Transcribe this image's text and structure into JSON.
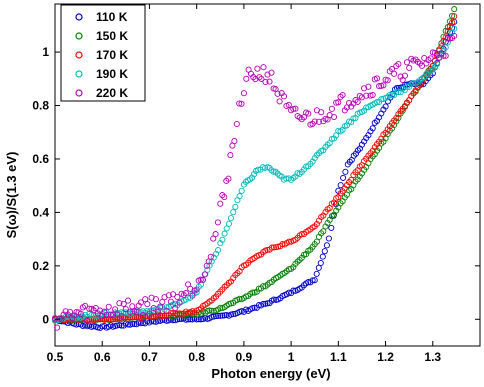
{
  "chart_data": {
    "type": "scatter",
    "xlabel": "Photon energy (eV)",
    "ylabel": "S(ω)/S(1.3 eV)",
    "xlim": [
      0.5,
      1.4
    ],
    "ylim": [
      -0.1,
      1.18
    ],
    "x_ticks": [
      "0.5",
      "0.6",
      "0.7",
      "0.8",
      "0.9",
      "1",
      "1.1",
      "1.2",
      "1.3"
    ],
    "y_ticks": [
      "0",
      "0.2",
      "0.4",
      "0.6",
      "0.8",
      "1"
    ],
    "legend_position": "top-left",
    "marker": "open-circle",
    "series": [
      {
        "name": "110 K",
        "color": "#0000cc",
        "x": [
          0.5,
          0.55,
          0.6,
          0.65,
          0.7,
          0.75,
          0.8,
          0.85,
          0.9,
          0.95,
          1.0,
          1.05,
          1.08,
          1.1,
          1.12,
          1.15,
          1.2,
          1.22,
          1.25,
          1.28,
          1.3,
          1.35
        ],
        "y": [
          0.0,
          -0.02,
          -0.03,
          -0.02,
          -0.01,
          0.0,
          0.0,
          0.01,
          0.03,
          0.06,
          0.1,
          0.15,
          0.3,
          0.48,
          0.58,
          0.65,
          0.8,
          0.86,
          0.88,
          0.88,
          0.92,
          1.13
        ]
      },
      {
        "name": "150 K",
        "color": "#008000",
        "x": [
          0.5,
          0.6,
          0.7,
          0.8,
          0.85,
          0.9,
          0.95,
          1.0,
          1.05,
          1.1,
          1.15,
          1.2,
          1.25,
          1.3,
          1.35
        ],
        "y": [
          0.0,
          0.0,
          0.01,
          0.02,
          0.04,
          0.08,
          0.13,
          0.19,
          0.28,
          0.42,
          0.55,
          0.68,
          0.82,
          0.95,
          1.18
        ]
      },
      {
        "name": "170 K",
        "color": "#ff0000",
        "x": [
          0.5,
          0.6,
          0.7,
          0.8,
          0.85,
          0.9,
          0.95,
          1.0,
          1.05,
          1.1,
          1.15,
          1.2,
          1.25,
          1.3,
          1.35
        ],
        "y": [
          0.0,
          0.0,
          0.01,
          0.03,
          0.1,
          0.2,
          0.26,
          0.29,
          0.35,
          0.46,
          0.58,
          0.7,
          0.82,
          0.95,
          1.15
        ]
      },
      {
        "name": "190 K",
        "color": "#00bbbb",
        "x": [
          0.5,
          0.6,
          0.7,
          0.75,
          0.8,
          0.85,
          0.9,
          0.93,
          0.95,
          0.98,
          1.0,
          1.05,
          1.1,
          1.15,
          1.2,
          1.25,
          1.3,
          1.35
        ],
        "y": [
          0.0,
          0.02,
          0.03,
          0.05,
          0.1,
          0.28,
          0.5,
          0.56,
          0.57,
          0.53,
          0.52,
          0.6,
          0.7,
          0.78,
          0.83,
          0.87,
          0.93,
          1.1
        ]
      },
      {
        "name": "220 K",
        "color": "#bb00bb",
        "x": [
          0.5,
          0.55,
          0.6,
          0.65,
          0.7,
          0.75,
          0.8,
          0.83,
          0.85,
          0.88,
          0.9,
          0.92,
          0.95,
          0.98,
          1.0,
          1.05,
          1.1,
          1.15,
          1.2,
          1.25,
          1.3,
          1.35
        ],
        "y": [
          0.0,
          0.02,
          0.03,
          0.04,
          0.05,
          0.07,
          0.13,
          0.25,
          0.4,
          0.68,
          0.88,
          0.92,
          0.92,
          0.82,
          0.76,
          0.75,
          0.8,
          0.85,
          0.9,
          0.94,
          0.98,
          1.05
        ]
      }
    ]
  }
}
